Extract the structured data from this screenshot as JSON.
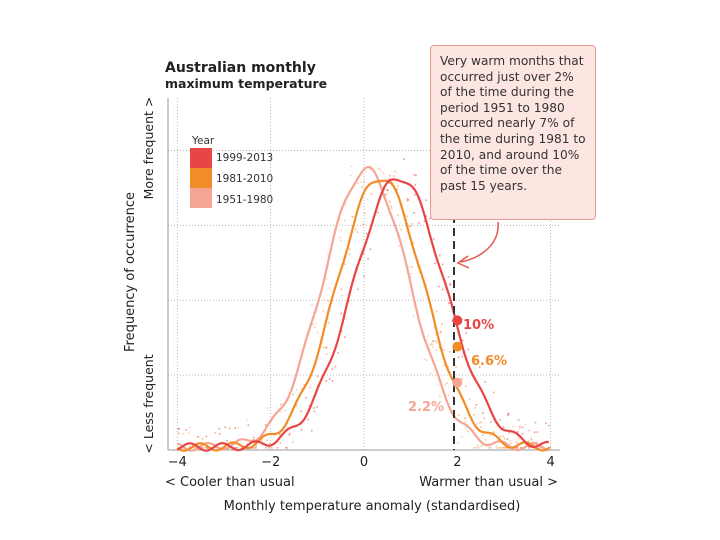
{
  "chart_data": {
    "type": "line",
    "title": "Australian monthly",
    "subtitle": "maximum temperature",
    "xlabel": "Monthly temperature anomaly (standardised)",
    "ylabel": "Frequency of occurrence",
    "y_low_label": "< Less frequent",
    "y_high_label": "More frequent >",
    "x_left_label": "< Cooler than usual",
    "x_right_label": "Warmer than usual >",
    "xlim": [
      -4.2,
      4.2
    ],
    "ylim": [
      0,
      0.47
    ],
    "x_ticks": [
      -4,
      -2,
      0,
      2,
      4
    ],
    "x_tick_labels": [
      "−4",
      "−2",
      "0",
      "2",
      "4"
    ],
    "grid": true,
    "threshold_x": 2,
    "legend": {
      "title": "Year",
      "position": "top-left",
      "entries": [
        "1999-2013",
        "1981-2010",
        "1951-1980"
      ]
    },
    "series": [
      {
        "name": "1999-2013",
        "color": "#e84545",
        "mean": 0.75,
        "sd": 0.98,
        "peak": 0.36
      },
      {
        "name": "1981-2010",
        "color": "#f28c28",
        "mean": 0.35,
        "sd": 0.93,
        "peak": 0.36
      },
      {
        "name": "1951-1980",
        "color": "#f4a594",
        "mean": 0.05,
        "sd": 0.92,
        "peak": 0.37
      }
    ],
    "annotations": [
      {
        "text": "10%",
        "series": "1999-2013",
        "x": 2,
        "y": 0.173
      },
      {
        "text": "6.6%",
        "series": "1981-2010",
        "x": 2,
        "y": 0.138
      },
      {
        "text": "2.2%",
        "series": "1951-1980",
        "x": 2,
        "y": 0.09
      }
    ]
  },
  "callout": {
    "text": "Very warm months that occurred just over 2% of the time during the period 1951 to 1980 occurred nearly 7% of the time during 1981 to 2010, and around 10% of the time over the past 15 years."
  }
}
